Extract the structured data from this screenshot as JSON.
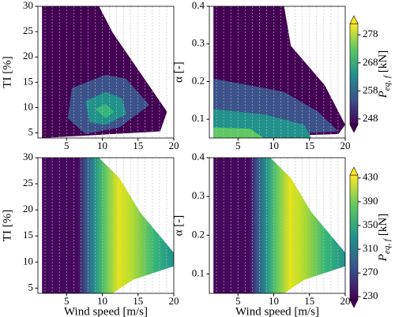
{
  "chart_data": [
    {
      "type": "contour",
      "ylabel": "TI [%]",
      "xlim": [
        1,
        20
      ],
      "ylim": [
        4,
        30
      ],
      "xticks": [
        5,
        10,
        15,
        20
      ],
      "yticks": [
        5,
        10,
        15,
        20,
        25,
        30
      ],
      "field": "tl"
    },
    {
      "type": "contour",
      "ylabel": "α [-]",
      "xlim": [
        1,
        20
      ],
      "ylim": [
        0.05,
        0.4
      ],
      "xticks": [
        5,
        10,
        15,
        20
      ],
      "yticks": [
        0.1,
        0.2,
        0.3,
        0.4
      ],
      "field": "tr",
      "colorbar": {
        "label": "P",
        "label_sub": "eq, f",
        "label_unit": "[kN]",
        "lim": [
          246,
          282
        ],
        "ticks": [
          248,
          258,
          268,
          278
        ]
      }
    },
    {
      "type": "contour",
      "xlabel": "Wind speed [m/s]",
      "ylabel": "TI [%]",
      "xlim": [
        1,
        20
      ],
      "ylim": [
        4,
        30
      ],
      "xticks": [
        5,
        10,
        15,
        20
      ],
      "yticks": [
        5,
        10,
        15,
        20,
        25,
        30
      ],
      "field": "b"
    },
    {
      "type": "contour",
      "xlabel": "Wind speed [m/s]",
      "ylabel": "α [-]",
      "xlim": [
        1,
        20
      ],
      "ylim": [
        0.05,
        0.4
      ],
      "xticks": [
        5,
        10,
        15,
        20
      ],
      "yticks": [
        0.1,
        0.2,
        0.3,
        0.4
      ],
      "field": "b",
      "colorbar": {
        "label": "P",
        "label_sub": "eq, f",
        "label_unit": "[kN]",
        "lim": [
          225,
          435
        ],
        "ticks": [
          230,
          270,
          310,
          350,
          390,
          430
        ]
      }
    }
  ]
}
